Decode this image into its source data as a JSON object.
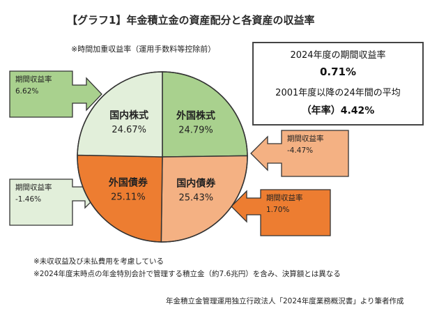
{
  "header": {
    "title": "【グラフ1】年金積立金の資産配分と各資産の収益率",
    "subtitle": "※時間加重収益率（運用手数料等控除前）"
  },
  "summary": {
    "line1": "2024年度の期間収益率",
    "line2": "0.71%",
    "line3": "2001年度以降の24年間の平均",
    "line4": "（年率）4.42%"
  },
  "callouts": {
    "foreign_stocks": {
      "label": "期間収益率",
      "value": "6.62%"
    },
    "domestic_bonds": {
      "label": "期間収益率",
      "value": "-4.47%"
    },
    "domestic_stocks": {
      "label": "期間収益率",
      "value": "-1.46%"
    },
    "foreign_bonds": {
      "label": "期間収益率",
      "value": "1.70%"
    }
  },
  "notes": [
    "※未収収益及び未払費用を考慮している",
    "※2024年度末時点の年金特別会計で管理する積立金（約7.6兆円）を含み、決算額とは異なる"
  ],
  "source": "年金積立金管理運用独立行政法人「2024年度業務概況書」より筆者作成",
  "chart_data": {
    "type": "pie",
    "title": "【グラフ1】年金積立金の資産配分と各資産の収益率",
    "slices": [
      {
        "label": "外国株式",
        "value": 24.79,
        "value_label": "24.79%",
        "color": "#a9d18e",
        "return": 6.62
      },
      {
        "label": "国内債券",
        "value": 25.43,
        "value_label": "25.43%",
        "color": "#f4b183",
        "return": -4.47
      },
      {
        "label": "外国債券",
        "value": 25.11,
        "value_label": "25.11%",
        "color": "#ed7d31",
        "return": 1.7
      },
      {
        "label": "国内株式",
        "value": 24.67,
        "value_label": "24.67%",
        "color": "#e2efda",
        "return": -1.46
      }
    ]
  }
}
